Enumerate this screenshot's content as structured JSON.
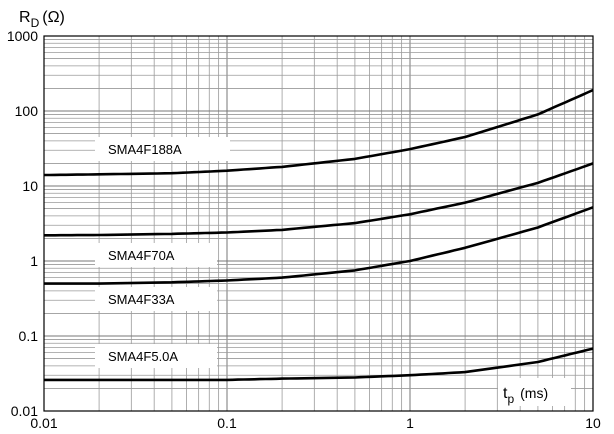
{
  "chart_data": {
    "type": "line",
    "x_scale": "log",
    "y_scale": "log",
    "xlim": [
      0.01,
      10
    ],
    "ylim": [
      0.01,
      1000
    ],
    "grid": true,
    "ylabel": {
      "main": "R",
      "sub": "D",
      "unit": "(Ω)"
    },
    "xlabel": {
      "main": "t",
      "sub": "p",
      "unit": "(ms)"
    },
    "x_ticks": [
      {
        "value": 0.01,
        "label": "0.01"
      },
      {
        "value": 0.1,
        "label": "0.1"
      },
      {
        "value": 1,
        "label": "1"
      },
      {
        "value": 10,
        "label": "10"
      }
    ],
    "y_ticks": [
      {
        "value": 0.01,
        "label": "0.01"
      },
      {
        "value": 0.1,
        "label": "0.1"
      },
      {
        "value": 1,
        "label": "1"
      },
      {
        "value": 10,
        "label": "10"
      },
      {
        "value": 100,
        "label": "100"
      },
      {
        "value": 1000,
        "label": "1000"
      }
    ],
    "series": [
      {
        "name": "SMA4F188A",
        "points": [
          [
            0.01,
            14
          ],
          [
            0.02,
            14.3
          ],
          [
            0.05,
            14.8
          ],
          [
            0.1,
            16
          ],
          [
            0.2,
            18
          ],
          [
            0.5,
            23
          ],
          [
            1,
            31
          ],
          [
            2,
            45
          ],
          [
            5,
            90
          ],
          [
            10,
            190
          ]
        ]
      },
      {
        "name": "SMA4F70A",
        "points": [
          [
            0.01,
            2.2
          ],
          [
            0.02,
            2.22
          ],
          [
            0.05,
            2.3
          ],
          [
            0.1,
            2.4
          ],
          [
            0.2,
            2.6
          ],
          [
            0.5,
            3.2
          ],
          [
            1,
            4.2
          ],
          [
            2,
            6
          ],
          [
            5,
            11
          ],
          [
            10,
            20
          ]
        ]
      },
      {
        "name": "SMA4F33A",
        "points": [
          [
            0.01,
            0.5
          ],
          [
            0.02,
            0.5
          ],
          [
            0.05,
            0.52
          ],
          [
            0.1,
            0.55
          ],
          [
            0.2,
            0.6
          ],
          [
            0.5,
            0.75
          ],
          [
            1,
            1.0
          ],
          [
            2,
            1.5
          ],
          [
            5,
            2.8
          ],
          [
            10,
            5.2
          ]
        ]
      },
      {
        "name": "SMA4F5.0A",
        "points": [
          [
            0.01,
            0.026
          ],
          [
            0.05,
            0.026
          ],
          [
            0.1,
            0.026
          ],
          [
            0.2,
            0.027
          ],
          [
            0.5,
            0.028
          ],
          [
            1,
            0.03
          ],
          [
            2,
            0.033
          ],
          [
            5,
            0.045
          ],
          [
            10,
            0.068
          ]
        ]
      }
    ]
  }
}
